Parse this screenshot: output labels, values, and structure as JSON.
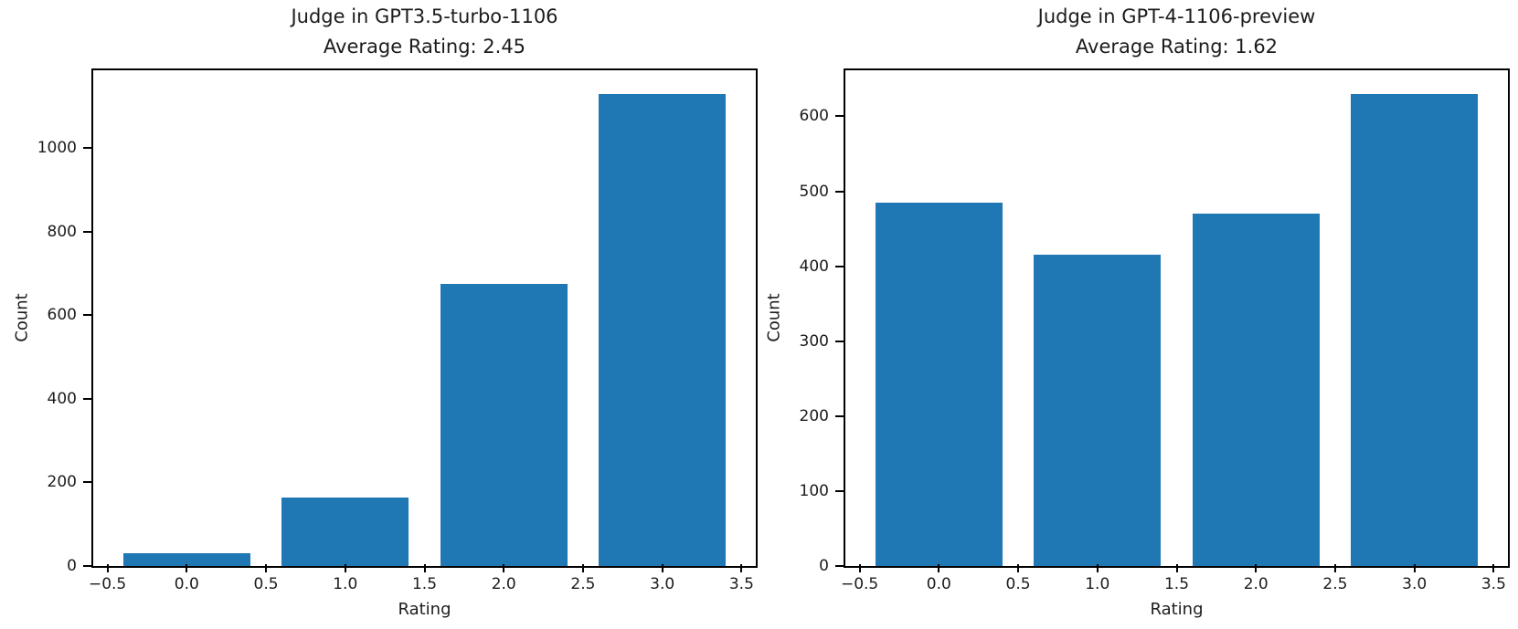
{
  "figure": {
    "background": "#ffffff",
    "bar_color": "#1f77b4",
    "text_color": "#1c1c1c",
    "spine_color": "#000000"
  },
  "chart_data": [
    {
      "type": "bar",
      "title_line1": "Judge in GPT3.5-turbo-1106",
      "title_line2": "Average Rating: 2.45",
      "average_rating": 2.45,
      "xlabel": "Rating",
      "ylabel": "Count",
      "categories": [
        0.0,
        1.0,
        2.0,
        3.0
      ],
      "values": [
        30,
        165,
        675,
        1130
      ],
      "bar_width": 0.8,
      "xlim": [
        -0.59,
        3.59
      ],
      "ylim": [
        0,
        1186.5
      ],
      "yticks": [
        0,
        200,
        400,
        600,
        800,
        1000
      ],
      "xtick_values": [
        -0.5,
        0.0,
        0.5,
        1.0,
        1.5,
        2.0,
        2.5,
        3.0,
        3.5
      ],
      "xtick_labels": [
        "−0.5",
        "0.0",
        "0.5",
        "1.0",
        "1.5",
        "2.0",
        "2.5",
        "3.0",
        "3.5"
      ],
      "grid": false,
      "legend": "none"
    },
    {
      "type": "bar",
      "title_line1": "Judge in GPT-4-1106-preview",
      "title_line2": "Average Rating: 1.62",
      "average_rating": 1.62,
      "xlabel": "Rating",
      "ylabel": "Count",
      "categories": [
        0.0,
        1.0,
        2.0,
        3.0
      ],
      "values": [
        485,
        415,
        470,
        630
      ],
      "bar_width": 0.8,
      "xlim": [
        -0.59,
        3.59
      ],
      "ylim": [
        0,
        661.5
      ],
      "yticks": [
        0,
        100,
        200,
        300,
        400,
        500,
        600
      ],
      "xtick_values": [
        -0.5,
        0.0,
        0.5,
        1.0,
        1.5,
        2.0,
        2.5,
        3.0,
        3.5
      ],
      "xtick_labels": [
        "−0.5",
        "0.0",
        "0.5",
        "1.0",
        "1.5",
        "2.0",
        "2.5",
        "3.0",
        "3.5"
      ],
      "grid": false,
      "legend": "none"
    }
  ]
}
